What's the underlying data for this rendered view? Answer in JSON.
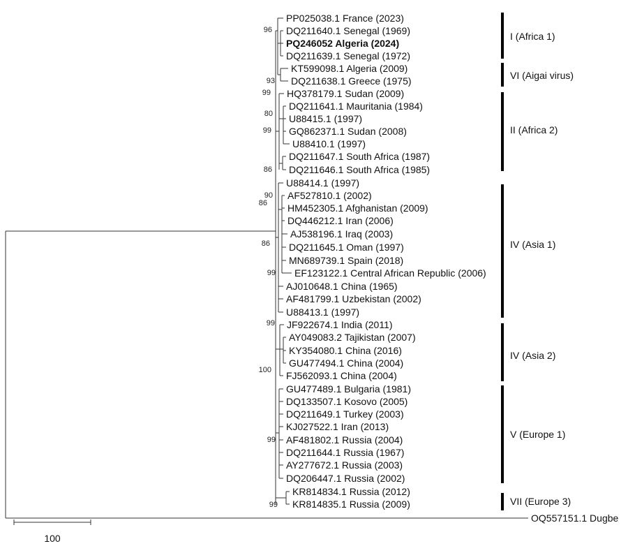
{
  "taxa": [
    {
      "label": "PP025038.1 France (2023)",
      "bold": false
    },
    {
      "label": "DQ211640.1 Senegal (1969)",
      "bold": false
    },
    {
      "label": "PQ246052 Algeria (2024)",
      "bold": true
    },
    {
      "label": "DQ211639.1 Senegal (1972)",
      "bold": false
    },
    {
      "label": "KT599098.1 Algeria (2009)",
      "bold": false
    },
    {
      "label": "DQ211638.1 Greece (1975)",
      "bold": false
    },
    {
      "label": "HQ378179.1 Sudan (2009)",
      "bold": false
    },
    {
      "label": "DQ211641.1 Mauritania (1984)",
      "bold": false
    },
    {
      "label": "U88415.1 (1997)",
      "bold": false
    },
    {
      "label": "GQ862371.1 Sudan (2008)",
      "bold": false
    },
    {
      "label": "U88410.1 (1997)",
      "bold": false
    },
    {
      "label": "DQ211647.1 South Africa (1987)",
      "bold": false
    },
    {
      "label": "DQ211646.1 South Africa (1985)",
      "bold": false
    },
    {
      "label": "U88414.1 (1997)",
      "bold": false
    },
    {
      "label": "AF527810.1 (2002)",
      "bold": false
    },
    {
      "label": "HM452305.1 Afghanistan (2009)",
      "bold": false
    },
    {
      "label": "DQ446212.1 Iran (2006)",
      "bold": false
    },
    {
      "label": "AJ538196.1 Iraq (2003)",
      "bold": false
    },
    {
      "label": "DQ211645.1 Oman (1997)",
      "bold": false
    },
    {
      "label": "MN689739.1 Spain (2018)",
      "bold": false
    },
    {
      "label": "EF123122.1 Central African Republic (2006)",
      "bold": false
    },
    {
      "label": "AJ010648.1 China (1965)",
      "bold": false
    },
    {
      "label": "AF481799.1 Uzbekistan (2002)",
      "bold": false
    },
    {
      "label": "U88413.1 (1997)",
      "bold": false
    },
    {
      "label": "JF922674.1 India (2011)",
      "bold": false
    },
    {
      "label": "AY049083.2 Tajikistan (2007)",
      "bold": false
    },
    {
      "label": "KY354080.1 China (2016)",
      "bold": false
    },
    {
      "label": "GU477494.1 China (2004)",
      "bold": false
    },
    {
      "label": "FJ562093.1 China (2004)",
      "bold": false
    },
    {
      "label": "GU477489.1 Bulgaria (1981)",
      "bold": false
    },
    {
      "label": "DQ133507.1 Kosovo (2005)",
      "bold": false
    },
    {
      "label": "DQ211649.1 Turkey (2003)",
      "bold": false
    },
    {
      "label": "KJ027522.1 Iran (2013)",
      "bold": false
    },
    {
      "label": "AF481802.1 Russia (2004)",
      "bold": false
    },
    {
      "label": "DQ211644.1 Russia (1967)",
      "bold": false
    },
    {
      "label": "AY277672.1 Russia (2003)",
      "bold": false
    },
    {
      "label": "DQ206447.1 Russia (2002)",
      "bold": false
    },
    {
      "label": "KR814834.1 Russia (2012)",
      "bold": false
    },
    {
      "label": "KR814835.1 Russia (2009)",
      "bold": false
    },
    {
      "label": "OQ557151.1 Dugbe",
      "bold": false
    }
  ],
  "bootstrap": [
    "96",
    "93",
    "99",
    "80",
    "99",
    "86",
    "90",
    "86",
    "86",
    "99",
    "99",
    "100",
    "99",
    "99"
  ],
  "clades": [
    {
      "label": "I (Africa 1)"
    },
    {
      "label": "VI (Aigai virus)"
    },
    {
      "label": "II (Africa 2)"
    },
    {
      "label": "IV (Asia 1)"
    },
    {
      "label": "IV (Asia 2)"
    },
    {
      "label": "V (Europe 1)"
    },
    {
      "label": "VII (Europe 3)"
    }
  ],
  "scale_bar": {
    "label": "100"
  }
}
